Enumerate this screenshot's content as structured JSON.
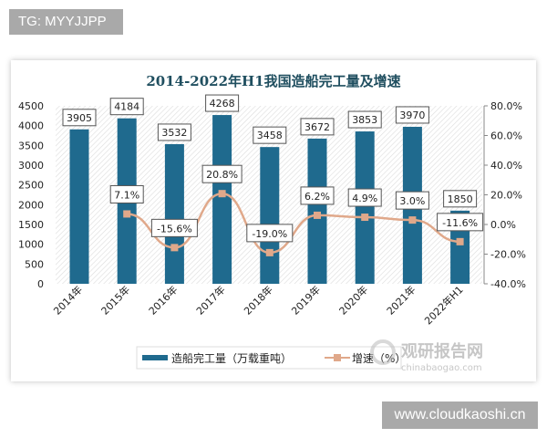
{
  "badge_top": "TG: MYYJJPP",
  "badge_bottom": "www.cloudkaoshi.cn",
  "watermark": {
    "cn": "观研报告网",
    "en": "chinabaogao.com"
  },
  "chart_data": {
    "type": "bar+line",
    "title": "2014-2022年H1我国造船完工量及增速",
    "categories": [
      "2014年",
      "2015年",
      "2016年",
      "2017年",
      "2018年",
      "2019年",
      "2020年",
      "2021年",
      "2022年H1"
    ],
    "series": [
      {
        "name": "造船完工量（万载重吨）",
        "type": "bar",
        "axis": "left",
        "color": "#1f6a8e",
        "values": [
          3905,
          4184,
          3532,
          4268,
          3458,
          3672,
          3853,
          3970,
          1850
        ],
        "labels": [
          "3905",
          "4184",
          "3532",
          "4268",
          "3458",
          "3672",
          "3853",
          "3970",
          "1850"
        ]
      },
      {
        "name": "增速（%）",
        "type": "line",
        "axis": "right",
        "color": "#e0a88a",
        "values": [
          null,
          7.1,
          -15.6,
          20.8,
          -19.0,
          6.2,
          4.9,
          3.0,
          -11.6
        ],
        "labels": [
          "",
          "7.1%",
          "-15.6%",
          "20.8%",
          "-19.0%",
          "6.2%",
          "4.9%",
          "3.0%",
          "-11.6%"
        ]
      }
    ],
    "y_left": {
      "range": [
        0,
        4500
      ],
      "ticks": [
        "0",
        "500",
        "1000",
        "1500",
        "2000",
        "2500",
        "3000",
        "3500",
        "4000",
        "4500"
      ]
    },
    "y_right": {
      "range": [
        -40,
        80
      ],
      "ticks": [
        "-40.0%",
        "-20.0%",
        "0.0%",
        "20.0%",
        "40.0%",
        "60.0%",
        "80.0%"
      ]
    },
    "legend": "bottom",
    "grid": false
  }
}
